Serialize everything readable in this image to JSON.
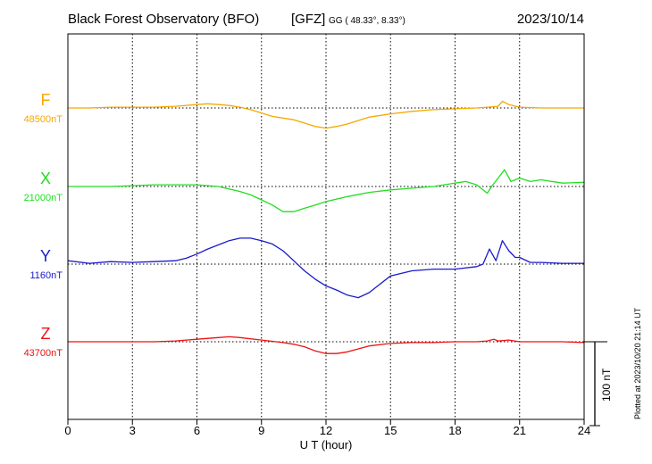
{
  "header": {
    "title": "Black Forest Observatory (BFO)",
    "institute": "[GFZ]",
    "coords": "GG ( 48.33°,   8.33°)",
    "date": "2023/10/14"
  },
  "side_note": "Plotted at 2023/10/20 21:14 UT",
  "chart_data": {
    "type": "line",
    "title": "Black Forest Observatory (BFO)",
    "xlabel": "U T (hour)",
    "ylabel": "",
    "xlim": [
      0,
      24
    ],
    "x_ticks": [
      "0",
      "3",
      "6",
      "9",
      "12",
      "15",
      "18",
      "21",
      "24"
    ],
    "grid": true,
    "scale_bar": {
      "label": "100 nT",
      "value_nT": 100
    },
    "series": [
      {
        "name": "F",
        "baseline_label": "48500nT",
        "baseline_nT": 48500,
        "color": "#f5a800",
        "x": [
          0,
          1,
          2,
          3,
          4,
          5,
          6,
          6.5,
          7,
          7.5,
          8,
          8.5,
          9,
          9.5,
          10,
          10.5,
          11,
          11.5,
          12,
          12.5,
          13,
          13.5,
          14,
          15,
          16,
          17,
          18,
          19,
          19.5,
          20,
          20.2,
          20.5,
          21,
          22,
          23,
          24
        ],
        "values": [
          0,
          0,
          1,
          1,
          1,
          2,
          4,
          5,
          4,
          3,
          1,
          -2,
          -6,
          -10,
          -12,
          -14,
          -18,
          -22,
          -24,
          -22,
          -19,
          -15,
          -11,
          -7,
          -4,
          -2,
          -1,
          0,
          1,
          2,
          8,
          4,
          1,
          0,
          0,
          0
        ]
      },
      {
        "name": "X",
        "baseline_label": "21000nT",
        "baseline_nT": 21000,
        "color": "#22dd22",
        "x": [
          0,
          1,
          2,
          3,
          4,
          5,
          6,
          7,
          8,
          8.5,
          9,
          9.5,
          10,
          10.5,
          11,
          11.5,
          12,
          13,
          14,
          15,
          16,
          17,
          18,
          18.5,
          19,
          19.5,
          19.7,
          20,
          20.3,
          20.6,
          21,
          21.5,
          22,
          23,
          24
        ],
        "values": [
          0,
          0,
          0,
          1,
          2,
          2,
          2,
          0,
          -6,
          -10,
          -16,
          -22,
          -30,
          -30,
          -26,
          -22,
          -18,
          -12,
          -7,
          -4,
          -2,
          0,
          4,
          6,
          2,
          -8,
          0,
          10,
          20,
          6,
          10,
          6,
          8,
          4,
          5
        ]
      },
      {
        "name": "Y",
        "baseline_label": "1160nT",
        "baseline_nT": 1160,
        "color": "#1a1acc",
        "x": [
          0,
          1,
          2,
          3,
          4,
          5,
          5.5,
          6,
          6.5,
          7,
          7.5,
          8,
          8.5,
          9,
          9.5,
          10,
          10.5,
          11,
          11.5,
          12,
          12.5,
          13,
          13.5,
          14,
          14.5,
          15,
          16,
          17,
          18,
          19,
          19.3,
          19.6,
          19.9,
          20.2,
          20.5,
          20.8,
          21,
          21.5,
          22,
          23,
          24
        ],
        "values": [
          4,
          1,
          3,
          2,
          3,
          4,
          7,
          12,
          18,
          23,
          28,
          31,
          31,
          28,
          24,
          16,
          4,
          -8,
          -18,
          -26,
          -31,
          -37,
          -40,
          -34,
          -24,
          -14,
          -8,
          -6,
          -6,
          -3,
          0,
          18,
          4,
          28,
          16,
          8,
          8,
          2,
          2,
          1,
          1
        ]
      },
      {
        "name": "Z",
        "baseline_label": "43700nT",
        "baseline_nT": 43700,
        "color": "#ee1111",
        "x": [
          0,
          2,
          4,
          5,
          6,
          7,
          7.5,
          8,
          9,
          10,
          10.5,
          11,
          11.5,
          12,
          12.5,
          13,
          14,
          15,
          16,
          17,
          18,
          19,
          19.5,
          19.8,
          20,
          20.5,
          21,
          22,
          23,
          24
        ],
        "values": [
          0,
          0,
          0,
          1,
          3,
          5,
          6,
          5,
          2,
          -1,
          -3,
          -6,
          -11,
          -14,
          -14,
          -12,
          -5,
          -2,
          -1,
          -1,
          0,
          0,
          1,
          3,
          1,
          2,
          0,
          0,
          0,
          -1
        ]
      }
    ]
  }
}
